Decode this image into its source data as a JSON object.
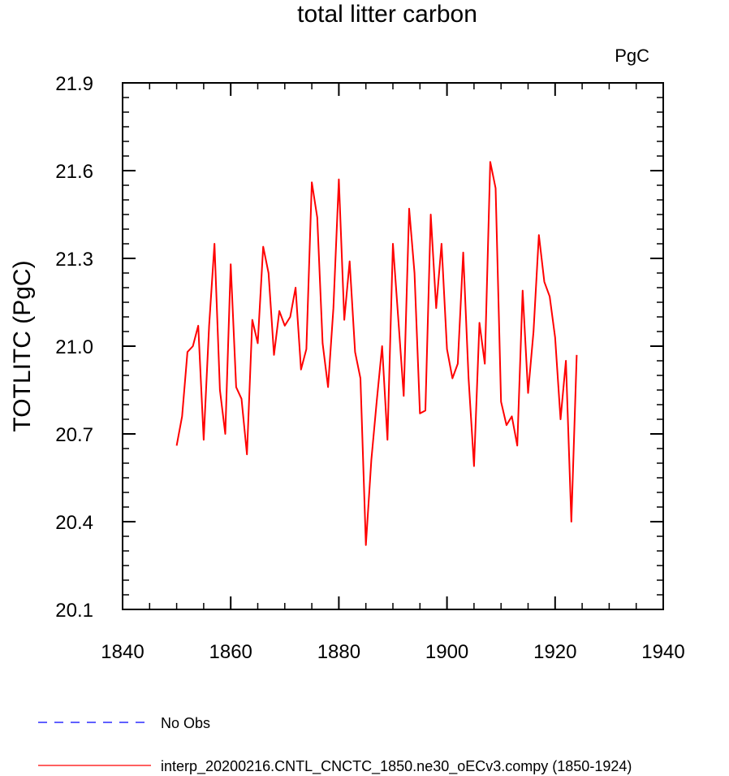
{
  "chart_data": {
    "type": "line",
    "title": "total litter carbon",
    "units_label": "PgC",
    "ylabel": "TOTLITC  (PgC)",
    "xlabel": "",
    "xlim": [
      1840,
      1940
    ],
    "ylim": [
      20.1,
      21.9
    ],
    "x_ticks": [
      "1840",
      "1860",
      "1880",
      "1900",
      "1920",
      "1940"
    ],
    "y_ticks": [
      "20.1",
      "20.4",
      "20.7",
      "21.0",
      "21.3",
      "21.6",
      "21.9"
    ],
    "grid": false,
    "legend_position": "bottom-left",
    "series": [
      {
        "name": "No Obs",
        "color": "#0000ff",
        "style": "dashed",
        "x": [],
        "values": []
      },
      {
        "name": "interp_20200216.CNTL_CNCTC_1850.ne30_oECv3.compy (1850-1924)",
        "color": "#ff0000",
        "style": "solid",
        "x": [
          1850,
          1851,
          1852,
          1853,
          1854,
          1855,
          1856,
          1857,
          1858,
          1859,
          1860,
          1861,
          1862,
          1863,
          1864,
          1865,
          1866,
          1867,
          1868,
          1869,
          1870,
          1871,
          1872,
          1873,
          1874,
          1875,
          1876,
          1877,
          1878,
          1879,
          1880,
          1881,
          1882,
          1883,
          1884,
          1885,
          1886,
          1887,
          1888,
          1889,
          1890,
          1891,
          1892,
          1893,
          1894,
          1895,
          1896,
          1897,
          1898,
          1899,
          1900,
          1901,
          1902,
          1903,
          1904,
          1905,
          1906,
          1907,
          1908,
          1909,
          1910,
          1911,
          1912,
          1913,
          1914,
          1915,
          1916,
          1917,
          1918,
          1919,
          1920,
          1921,
          1922,
          1923,
          1924
        ],
        "values": [
          20.66,
          20.76,
          20.98,
          21.0,
          21.07,
          20.68,
          21.07,
          21.35,
          20.85,
          20.7,
          21.28,
          20.86,
          20.82,
          20.63,
          21.09,
          21.01,
          21.34,
          21.25,
          20.97,
          21.12,
          21.07,
          21.1,
          21.2,
          20.92,
          20.99,
          21.56,
          21.44,
          21.01,
          20.86,
          21.13,
          21.57,
          21.09,
          21.29,
          20.98,
          20.89,
          20.32,
          20.61,
          20.81,
          21.0,
          20.68,
          21.35,
          21.09,
          20.83,
          21.47,
          21.25,
          20.77,
          20.78,
          21.45,
          21.13,
          21.35,
          20.99,
          20.89,
          20.94,
          21.32,
          20.89,
          20.59,
          21.08,
          20.94,
          21.63,
          21.54,
          20.81,
          20.73,
          20.76,
          20.66,
          21.19,
          20.84,
          21.05,
          21.38,
          21.22,
          21.17,
          21.03,
          20.75,
          20.95,
          20.4,
          20.97
        ]
      }
    ]
  }
}
